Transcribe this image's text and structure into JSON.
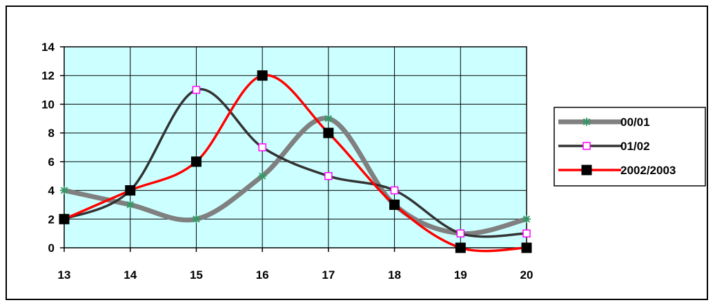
{
  "chart_data": {
    "type": "line",
    "x": [
      13,
      14,
      15,
      16,
      17,
      18,
      19,
      20
    ],
    "xlim": [
      13,
      20
    ],
    "ylim": [
      0,
      14
    ],
    "xticks": [
      "13",
      "14",
      "15",
      "16",
      "17",
      "18",
      "19",
      "20"
    ],
    "yticks": [
      "0",
      "2",
      "4",
      "6",
      "8",
      "10",
      "12",
      "14"
    ],
    "grid": true,
    "plot_background": "#ccffff",
    "legend_position": "right",
    "series": [
      {
        "name": "00/01",
        "values": [
          4,
          3,
          2,
          5,
          9,
          3,
          1,
          2
        ],
        "color": "#808080",
        "marker": "star",
        "marker_color": "#339966"
      },
      {
        "name": "01/02",
        "values": [
          2,
          4,
          11,
          7,
          5,
          4,
          1,
          1
        ],
        "color": "#333333",
        "marker": "open-square",
        "marker_color": "#ff00ff"
      },
      {
        "name": "2002/2003",
        "values": [
          2,
          4,
          6,
          12,
          8,
          3,
          0,
          0
        ],
        "color": "#ff0000",
        "marker": "filled-square",
        "marker_color": "#000000"
      }
    ]
  }
}
